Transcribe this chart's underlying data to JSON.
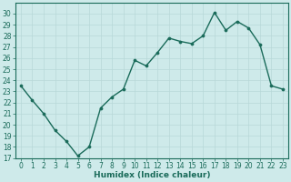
{
  "x": [
    0,
    1,
    2,
    3,
    4,
    5,
    6,
    7,
    8,
    9,
    10,
    11,
    12,
    13,
    14,
    15,
    16,
    17,
    18,
    19,
    20,
    21,
    22,
    23
  ],
  "y": [
    23.5,
    22.2,
    21.0,
    19.5,
    18.5,
    17.2,
    18.0,
    21.5,
    22.5,
    23.2,
    25.8,
    25.3,
    26.5,
    27.8,
    27.5,
    27.3,
    28.0,
    30.1,
    28.5,
    29.3,
    28.7,
    27.2,
    23.5,
    23.2
  ],
  "line_color": "#1a6b5a",
  "marker": "o",
  "marker_size": 2.2,
  "linewidth": 1.0,
  "bg_color": "#ceeaea",
  "grid_color": "#b8d8d8",
  "xlabel": "Humidex (Indice chaleur)",
  "ylim": [
    17,
    31
  ],
  "xlim": [
    -0.5,
    23.5
  ],
  "yticks": [
    17,
    18,
    19,
    20,
    21,
    22,
    23,
    24,
    25,
    26,
    27,
    28,
    29,
    30
  ],
  "xticks": [
    0,
    1,
    2,
    3,
    4,
    5,
    6,
    7,
    8,
    9,
    10,
    11,
    12,
    13,
    14,
    15,
    16,
    17,
    18,
    19,
    20,
    21,
    22,
    23
  ],
  "tick_fontsize": 5.5,
  "xlabel_fontsize": 6.5,
  "tick_color": "#1a6b5a",
  "axis_color": "#1a6b5a"
}
